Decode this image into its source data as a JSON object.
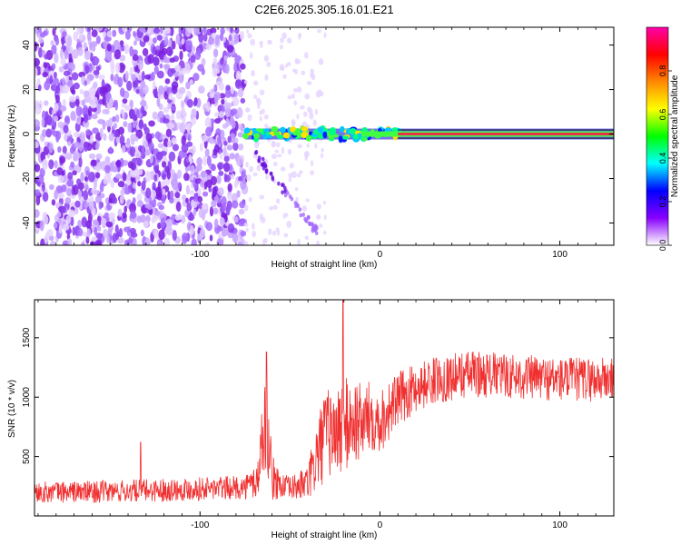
{
  "figure_title": "C2E6.2025.305.16.01.E21",
  "chart_data": [
    {
      "type": "heatmap",
      "xlabel": "Height of straight line (km)",
      "ylabel": "Frequency (Hz)",
      "xlim": [
        -192,
        130
      ],
      "ylim": [
        -50,
        48
      ],
      "x_ticks": [
        -100,
        0,
        100
      ],
      "y_ticks": [
        -40,
        -20,
        0,
        20,
        40
      ],
      "x_tick_labels": [
        "-100",
        "0",
        "100"
      ],
      "y_tick_labels": [
        "-40",
        "-20",
        "0",
        "20",
        "40"
      ],
      "colorbar": {
        "label": "Normalized spectral amplitude",
        "range": [
          0,
          1
        ],
        "ticks": [
          0.0,
          0.2,
          0.4,
          0.6,
          0.8
        ],
        "tick_labels": [
          "0.0",
          "0.2",
          "0.4",
          "0.6",
          "0.8"
        ],
        "colormap": [
          "#ffffff",
          "#8800ff",
          "#0000ff",
          "#00ffff",
          "#00ff00",
          "#ffff00",
          "#ff8800",
          "#ff0000",
          "#ff00aa"
        ]
      },
      "features": {
        "noise_region_x": [
          -192,
          -75
        ],
        "sparse_region_x": [
          -75,
          -30
        ],
        "signal_line_frequency": 0,
        "signal_strong_start_x": 10,
        "signal_color": "#e8304a",
        "noise_color": "#7a1fe0"
      }
    },
    {
      "type": "line",
      "xlabel": "Height of straight line (km)",
      "ylabel": "SNR (10 * v/v)",
      "xlim": [
        -192,
        130
      ],
      "ylim": [
        0,
        1820
      ],
      "x_ticks": [
        -100,
        0,
        100
      ],
      "y_ticks": [
        500,
        1000,
        1500
      ],
      "x_tick_labels": [
        "-100",
        "0",
        "100"
      ],
      "y_tick_labels": [
        "500",
        "1000",
        "1500"
      ],
      "series": [
        {
          "name": "SNR",
          "color": "#f03030",
          "x": [
            -192,
            -150,
            -100,
            -75,
            -68,
            -65,
            -63,
            -60,
            -55,
            -50,
            -40,
            -35,
            -30,
            -25,
            -20,
            -15,
            -10,
            -5,
            0,
            10,
            20,
            30,
            50,
            70,
            100,
            130
          ],
          "mean": [
            200,
            205,
            230,
            240,
            300,
            700,
            800,
            320,
            260,
            230,
            280,
            500,
            700,
            700,
            750,
            800,
            780,
            850,
            800,
            980,
            1080,
            1140,
            1200,
            1180,
            1150,
            1150
          ],
          "spread": [
            90,
            95,
            100,
            100,
            180,
            350,
            420,
            200,
            110,
            100,
            150,
            330,
            380,
            380,
            420,
            380,
            330,
            300,
            280,
            230,
            210,
            200,
            200,
            190,
            190,
            190
          ]
        }
      ],
      "peaks": [
        {
          "x": -20.5,
          "y": 1820
        },
        {
          "x": -63,
          "y": 1380
        },
        {
          "x": -133,
          "y": 620
        }
      ]
    }
  ]
}
